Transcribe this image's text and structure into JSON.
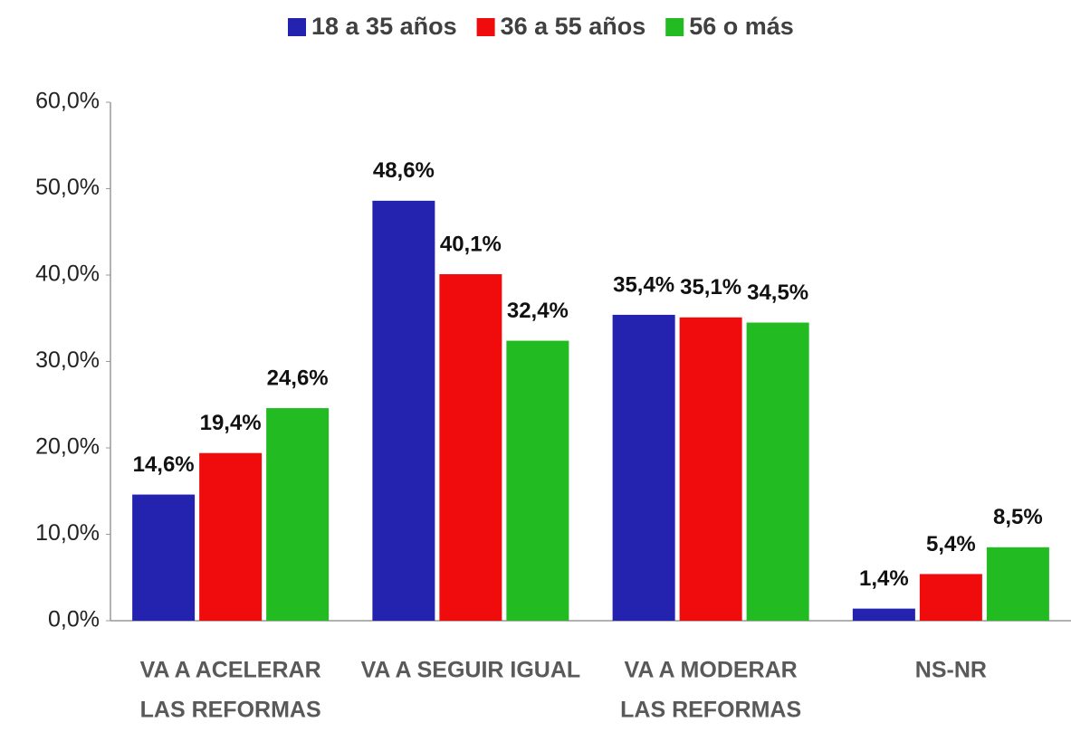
{
  "chart_data": {
    "type": "bar",
    "categories": [
      [
        "VA A ACELERAR",
        "LAS  REFORMAS"
      ],
      [
        "VA A SEGUIR IGUAL"
      ],
      [
        "VA A MODERAR",
        "LAS  REFORMAS"
      ],
      [
        "NS-NR"
      ]
    ],
    "series": [
      {
        "name": "18 a 35 años",
        "color": "#2323b0",
        "values": [
          14.6,
          48.6,
          35.4,
          1.4
        ],
        "value_labels": [
          "14,6%",
          "48,6%",
          "35,4%",
          "1,4%"
        ]
      },
      {
        "name": "36 a 55 años",
        "color": "#f00c0c",
        "values": [
          19.4,
          40.1,
          35.1,
          5.4
        ],
        "value_labels": [
          "19,4%",
          "40,1%",
          "35,1%",
          "5,4%"
        ]
      },
      {
        "name": "56 o más",
        "color": "#22bb22",
        "values": [
          24.6,
          32.4,
          34.5,
          8.5
        ],
        "value_labels": [
          "24,6%",
          "32,4%",
          "34,5%",
          "8,5%"
        ]
      }
    ],
    "ylim": [
      0,
      60
    ],
    "yticks": [
      {
        "value": 0,
        "label": "0,0%"
      },
      {
        "value": 10,
        "label": "10,0%"
      },
      {
        "value": 20,
        "label": "20,0%"
      },
      {
        "value": 30,
        "label": "30,0%"
      },
      {
        "value": 40,
        "label": "40,0%"
      },
      {
        "value": 50,
        "label": "50,0%"
      },
      {
        "value": 60,
        "label": "60,0%"
      }
    ],
    "grid": false,
    "legend": "top"
  }
}
